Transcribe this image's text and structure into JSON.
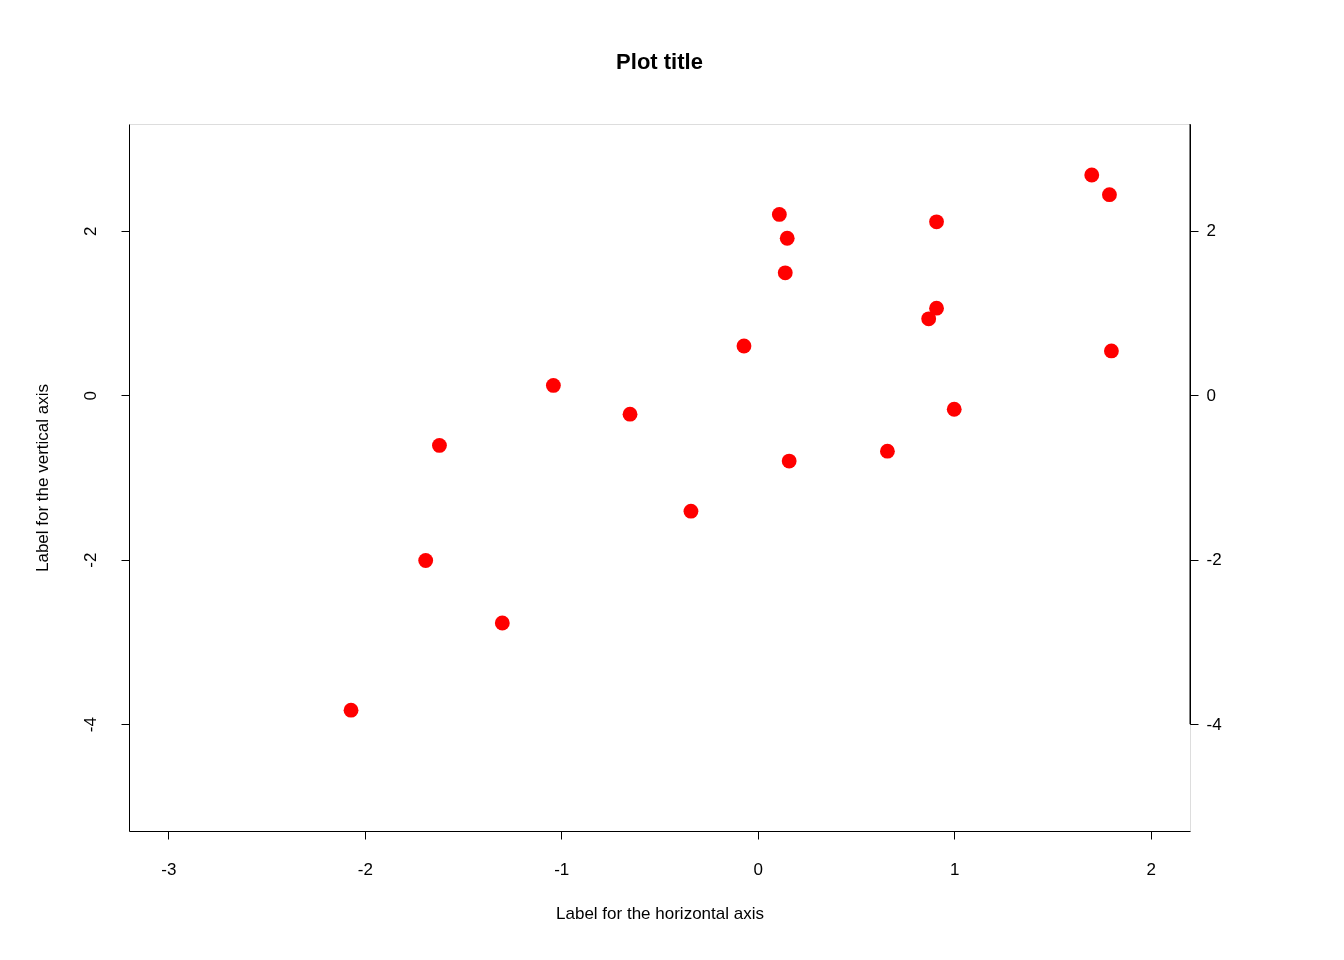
{
  "chart_data": {
    "type": "scatter",
    "title": "Plot title",
    "xlabel": "Label for the horizontal axis",
    "ylabel": "Label for the vertical axis",
    "x": [
      -2.07,
      -1.69,
      -1.62,
      -1.3,
      -1.04,
      -0.65,
      -0.34,
      -0.07,
      0.11,
      0.15,
      0.14,
      0.16,
      0.66,
      0.87,
      0.91,
      0.91,
      1.0,
      1.7,
      1.79,
      1.8
    ],
    "series": [
      {
        "color": "#ff0000",
        "values": [
          -3.83,
          -2.01,
          -0.61,
          -2.77,
          0.12,
          -0.23,
          -1.41,
          0.6,
          2.2,
          1.91,
          1.49,
          -0.8,
          -0.68,
          0.93,
          1.06,
          2.11,
          -0.17,
          2.68,
          2.44,
          0.54
        ]
      }
    ],
    "xlim": [
      -3.2,
      2.2
    ],
    "xticks": [
      -3,
      -2,
      -1,
      0,
      1,
      2
    ],
    "ylim": [
      -5.3,
      3.3
    ],
    "yticks": [
      -4,
      -2,
      0,
      2
    ],
    "y2lim": [
      -4,
      3.3
    ],
    "y2ticks": [
      -4,
      -2,
      0,
      2
    ],
    "marker": "circle",
    "grid": false
  }
}
